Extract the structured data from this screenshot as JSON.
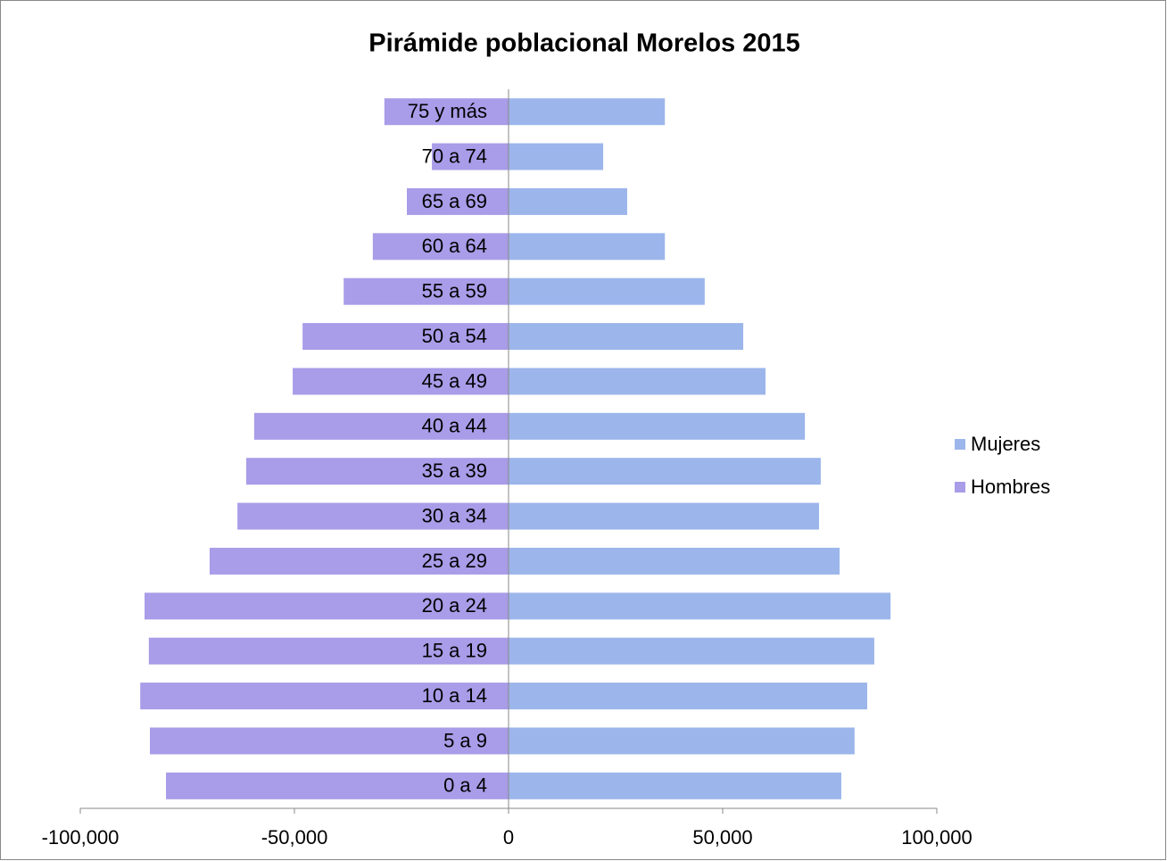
{
  "chart_data": {
    "type": "hbar",
    "title": "Pirámide poblacional Morelos 2015",
    "categories": [
      "0 a 4",
      "5 a 9",
      "10 a 14",
      "15 a 19",
      "20 a 24",
      "25 a 29",
      "30 a 34",
      "35 a 39",
      "40 a 44",
      "45 a 49",
      "50 a 54",
      "55 a 59",
      "60 a 64",
      "65 a 69",
      "70 a 74",
      "75 y más"
    ],
    "series": [
      {
        "name": "Mujeres",
        "color": "#9cb6eb",
        "values": [
          77700,
          80800,
          83750,
          85400,
          89200,
          77300,
          72500,
          72900,
          69200,
          60000,
          54800,
          45800,
          36500,
          27700,
          22100,
          36500
        ]
      },
      {
        "name": "Hombres",
        "color": "#a99ce8",
        "values": [
          -80000,
          -83750,
          -86000,
          -84000,
          -85000,
          -69800,
          -63300,
          -61250,
          -59400,
          -50400,
          -48100,
          -38500,
          -31700,
          -23750,
          -17900,
          -29000
        ]
      }
    ],
    "xlim": [
      -100000,
      100000
    ],
    "xticks": [
      {
        "value": -100000,
        "label": "-100,000"
      },
      {
        "value": -50000,
        "label": "-50,000"
      },
      0,
      {
        "value": 50000,
        "label": "50,000"
      },
      {
        "value": 100000,
        "label": "100,000"
      }
    ],
    "legend": "right",
    "stacked": true
  }
}
